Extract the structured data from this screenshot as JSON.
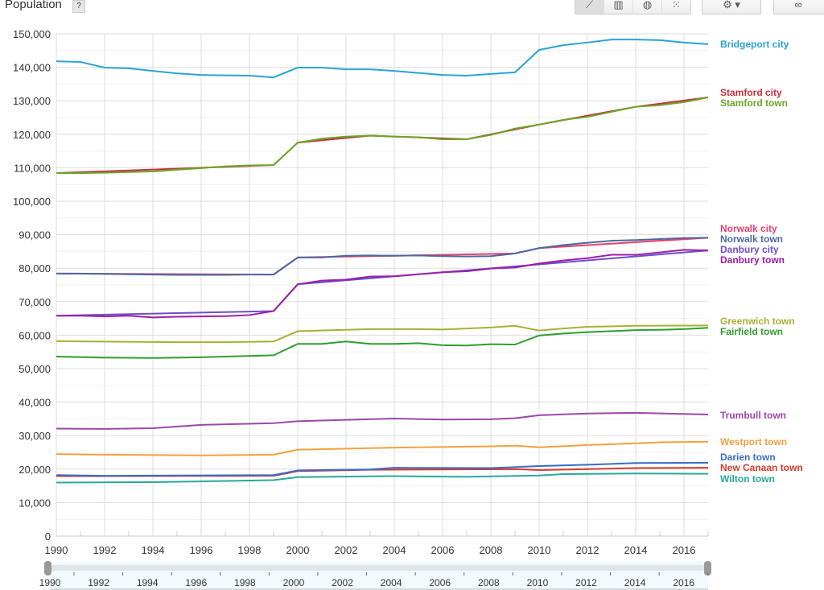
{
  "header": {
    "title": "Population",
    "help_label": "?",
    "chart_buttons": [
      {
        "icon": "line-chart-icon",
        "glyph": "⟋",
        "active": true
      },
      {
        "icon": "bar-chart-icon",
        "glyph": "▥",
        "active": false
      },
      {
        "icon": "map-globe-icon",
        "glyph": "◍",
        "active": false
      },
      {
        "icon": "scatter-chart-icon",
        "glyph": "⁙",
        "active": false
      }
    ],
    "settings": {
      "icon": "gear-icon",
      "glyph": "⚙ ▾"
    },
    "link": {
      "icon": "link-icon",
      "glyph": "∞"
    }
  },
  "chart_data": {
    "type": "line",
    "ylabel": "Population",
    "ylim": [
      0,
      150000
    ],
    "yticks": [
      "0",
      "10,000",
      "20,000",
      "30,000",
      "40,000",
      "50,000",
      "60,000",
      "70,000",
      "80,000",
      "90,000",
      "100,000",
      "110,000",
      "120,000",
      "130,000",
      "140,000",
      "150,000"
    ],
    "xlim": [
      1990,
      2017
    ],
    "xticks": [
      "1990",
      "1992",
      "1994",
      "1996",
      "1998",
      "2000",
      "2002",
      "2004",
      "2006",
      "2008",
      "2010",
      "2012",
      "2014",
      "2016"
    ],
    "grid": true,
    "legend": "right, labels at line ends",
    "series": [
      {
        "name": "Bridgeport city",
        "color": "#2ba3d3",
        "points": [
          [
            1990,
            141800
          ],
          [
            1991,
            141600
          ],
          [
            1992,
            139900
          ],
          [
            1993,
            139700
          ],
          [
            1994,
            138900
          ],
          [
            1995,
            138200
          ],
          [
            1996,
            137700
          ],
          [
            1997,
            137600
          ],
          [
            1998,
            137500
          ],
          [
            1999,
            137000
          ],
          [
            2000,
            139900
          ],
          [
            2001,
            139900
          ],
          [
            2002,
            139400
          ],
          [
            2003,
            139400
          ],
          [
            2004,
            138900
          ],
          [
            2005,
            138300
          ],
          [
            2006,
            137700
          ],
          [
            2007,
            137500
          ],
          [
            2008,
            138000
          ],
          [
            2009,
            138500
          ],
          [
            2010,
            145200
          ],
          [
            2011,
            146600
          ],
          [
            2012,
            147400
          ],
          [
            2013,
            148300
          ],
          [
            2014,
            148300
          ],
          [
            2015,
            148100
          ],
          [
            2016,
            147400
          ],
          [
            2017,
            146900
          ]
        ]
      },
      {
        "name": "Stamford city",
        "color": "#c8303a",
        "points": [
          [
            1990,
            108400
          ],
          [
            1999,
            110800
          ],
          [
            2000,
            117500
          ],
          [
            2003,
            119600
          ],
          [
            2007,
            118500
          ],
          [
            2010,
            122900
          ],
          [
            2014,
            128200
          ],
          [
            2017,
            131000
          ]
        ]
      },
      {
        "name": "Stamford town",
        "color": "#6aa626",
        "points": [
          [
            1990,
            108400
          ],
          [
            1991,
            108400
          ],
          [
            1992,
            108500
          ],
          [
            1993,
            108700
          ],
          [
            1994,
            108900
          ],
          [
            1995,
            109400
          ],
          [
            1996,
            109900
          ],
          [
            1997,
            110400
          ],
          [
            1998,
            110700
          ],
          [
            1999,
            110800
          ],
          [
            2000,
            117500
          ],
          [
            2001,
            118700
          ],
          [
            2002,
            119300
          ],
          [
            2003,
            119600
          ],
          [
            2004,
            119300
          ],
          [
            2005,
            119100
          ],
          [
            2006,
            118500
          ],
          [
            2007,
            118500
          ],
          [
            2008,
            119800
          ],
          [
            2009,
            121700
          ],
          [
            2010,
            122900
          ],
          [
            2011,
            124300
          ],
          [
            2012,
            125200
          ],
          [
            2013,
            126700
          ],
          [
            2014,
            128200
          ],
          [
            2015,
            128700
          ],
          [
            2016,
            129600
          ],
          [
            2017,
            131000
          ]
        ]
      },
      {
        "name": "Norwalk city",
        "color": "#e8406e",
        "points": [
          [
            1990,
            78400
          ],
          [
            1999,
            78100
          ],
          [
            2000,
            83200
          ],
          [
            2009,
            84400
          ],
          [
            2010,
            86000
          ],
          [
            2017,
            89100
          ]
        ]
      },
      {
        "name": "Norwalk town",
        "color": "#4a6aa0",
        "points": [
          [
            1990,
            78400
          ],
          [
            1991,
            78400
          ],
          [
            1992,
            78300
          ],
          [
            1993,
            78200
          ],
          [
            1994,
            78100
          ],
          [
            1995,
            78000
          ],
          [
            1996,
            78000
          ],
          [
            1997,
            78000
          ],
          [
            1998,
            78100
          ],
          [
            1999,
            78100
          ],
          [
            2000,
            83200
          ],
          [
            2001,
            83200
          ],
          [
            2002,
            83700
          ],
          [
            2003,
            83800
          ],
          [
            2004,
            83700
          ],
          [
            2005,
            83800
          ],
          [
            2006,
            83600
          ],
          [
            2007,
            83500
          ],
          [
            2008,
            83600
          ],
          [
            2009,
            84400
          ],
          [
            2010,
            86000
          ],
          [
            2011,
            86900
          ],
          [
            2012,
            87600
          ],
          [
            2013,
            88200
          ],
          [
            2014,
            88400
          ],
          [
            2015,
            88700
          ],
          [
            2016,
            89000
          ],
          [
            2017,
            89100
          ]
        ]
      },
      {
        "name": "Danbury city",
        "color": "#6b4fc9",
        "points": [
          [
            1990,
            65800
          ],
          [
            1999,
            67200
          ],
          [
            2000,
            75200
          ],
          [
            2017,
            85300
          ]
        ]
      },
      {
        "name": "Danbury town",
        "color": "#9c1fa6",
        "points": [
          [
            1990,
            65800
          ],
          [
            1991,
            65800
          ],
          [
            1992,
            65600
          ],
          [
            1993,
            65800
          ],
          [
            1994,
            65300
          ],
          [
            1995,
            65500
          ],
          [
            1996,
            65600
          ],
          [
            1997,
            65700
          ],
          [
            1998,
            66000
          ],
          [
            1999,
            67200
          ],
          [
            2000,
            75200
          ],
          [
            2001,
            76300
          ],
          [
            2002,
            76600
          ],
          [
            2003,
            77500
          ],
          [
            2004,
            77600
          ],
          [
            2005,
            78200
          ],
          [
            2006,
            78800
          ],
          [
            2007,
            79100
          ],
          [
            2008,
            79900
          ],
          [
            2009,
            80200
          ],
          [
            2010,
            81400
          ],
          [
            2011,
            82300
          ],
          [
            2012,
            83000
          ],
          [
            2013,
            84000
          ],
          [
            2014,
            84000
          ],
          [
            2015,
            84700
          ],
          [
            2016,
            85500
          ],
          [
            2017,
            85300
          ]
        ]
      },
      {
        "name": "Greenwich town",
        "color": "#a8b033",
        "points": [
          [
            1990,
            58200
          ],
          [
            1995,
            57900
          ],
          [
            1997,
            57900
          ],
          [
            1999,
            58100
          ],
          [
            2000,
            61200
          ],
          [
            2003,
            61800
          ],
          [
            2005,
            61800
          ],
          [
            2006,
            61700
          ],
          [
            2008,
            62300
          ],
          [
            2009,
            62800
          ],
          [
            2010,
            61400
          ],
          [
            2011,
            62000
          ],
          [
            2012,
            62500
          ],
          [
            2014,
            62800
          ],
          [
            2017,
            62900
          ]
        ]
      },
      {
        "name": "Fairfield town",
        "color": "#2f9d2f",
        "points": [
          [
            1990,
            53600
          ],
          [
            1992,
            53300
          ],
          [
            1994,
            53200
          ],
          [
            1996,
            53400
          ],
          [
            1999,
            54000
          ],
          [
            2000,
            57400
          ],
          [
            2001,
            57400
          ],
          [
            2002,
            58100
          ],
          [
            2003,
            57400
          ],
          [
            2004,
            57400
          ],
          [
            2005,
            57600
          ],
          [
            2006,
            57000
          ],
          [
            2007,
            56900
          ],
          [
            2008,
            57300
          ],
          [
            2009,
            57200
          ],
          [
            2010,
            59900
          ],
          [
            2011,
            60500
          ],
          [
            2012,
            60900
          ],
          [
            2013,
            61200
          ],
          [
            2014,
            61500
          ],
          [
            2015,
            61600
          ],
          [
            2016,
            61800
          ],
          [
            2017,
            62200
          ]
        ]
      },
      {
        "name": "Trumbull town",
        "color": "#9a48a6",
        "points": [
          [
            1990,
            32100
          ],
          [
            1992,
            32000
          ],
          [
            1994,
            32200
          ],
          [
            1996,
            33200
          ],
          [
            1999,
            33700
          ],
          [
            2000,
            34300
          ],
          [
            2002,
            34700
          ],
          [
            2004,
            35100
          ],
          [
            2006,
            34800
          ],
          [
            2008,
            34900
          ],
          [
            2009,
            35200
          ],
          [
            2010,
            36100
          ],
          [
            2012,
            36600
          ],
          [
            2014,
            36800
          ],
          [
            2017,
            36300
          ]
        ]
      },
      {
        "name": "Westport town",
        "color": "#f4a040",
        "points": [
          [
            1990,
            24500
          ],
          [
            1992,
            24300
          ],
          [
            1996,
            24100
          ],
          [
            1999,
            24300
          ],
          [
            2000,
            25800
          ],
          [
            2004,
            26400
          ],
          [
            2008,
            26800
          ],
          [
            2009,
            27000
          ],
          [
            2010,
            26500
          ],
          [
            2012,
            27200
          ],
          [
            2014,
            27700
          ],
          [
            2015,
            28000
          ],
          [
            2017,
            28200
          ]
        ]
      },
      {
        "name": "Darien town",
        "color": "#3a6bc9",
        "points": [
          [
            1990,
            18200
          ],
          [
            1992,
            18000
          ],
          [
            1999,
            18200
          ],
          [
            2000,
            19600
          ],
          [
            2003,
            19900
          ],
          [
            2004,
            20400
          ],
          [
            2008,
            20300
          ],
          [
            2010,
            20900
          ],
          [
            2012,
            21300
          ],
          [
            2014,
            21800
          ],
          [
            2017,
            21900
          ]
        ]
      },
      {
        "name": "New Canaan town",
        "color": "#d83a2a",
        "points": [
          [
            1990,
            17900
          ],
          [
            1999,
            18000
          ],
          [
            2000,
            19400
          ],
          [
            2003,
            19800
          ],
          [
            2009,
            20000
          ],
          [
            2010,
            19700
          ],
          [
            2014,
            20300
          ],
          [
            2017,
            20400
          ]
        ]
      },
      {
        "name": "Wilton town",
        "color": "#2aa89a",
        "points": [
          [
            1990,
            16000
          ],
          [
            1994,
            16100
          ],
          [
            1999,
            16700
          ],
          [
            2000,
            17600
          ],
          [
            2004,
            17900
          ],
          [
            2007,
            17700
          ],
          [
            2010,
            18100
          ],
          [
            2011,
            18500
          ],
          [
            2014,
            18700
          ],
          [
            2017,
            18600
          ]
        ]
      }
    ]
  },
  "timeline": {
    "ticks": [
      "1990",
      "1992",
      "1994",
      "1996",
      "1998",
      "2000",
      "2002",
      "2004",
      "2006",
      "2008",
      "2010",
      "2012",
      "2014",
      "2016"
    ]
  }
}
